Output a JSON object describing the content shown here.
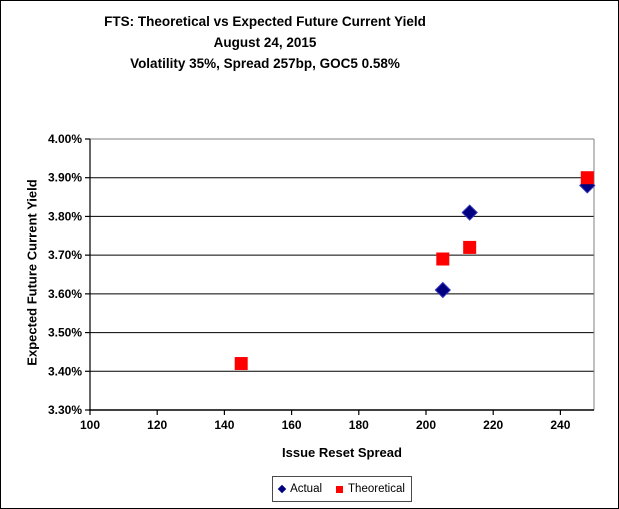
{
  "title": {
    "line1": "FTS: Theoretical vs Expected Future Current Yield",
    "line2": "August 24, 2015",
    "line3": "Volatility 35%, Spread 257bp, GOC5 0.58%"
  },
  "chart_data": {
    "type": "scatter",
    "xlabel": "Issue Reset Spread",
    "ylabel": "Expected Future Current Yield",
    "xlim": [
      100,
      250
    ],
    "ylim": [
      3.3,
      4.0
    ],
    "x_ticks": [
      100,
      120,
      140,
      160,
      180,
      200,
      220,
      240
    ],
    "y_ticks": [
      3.3,
      3.4,
      3.5,
      3.6,
      3.7,
      3.8,
      3.9,
      4.0
    ],
    "y_tick_suffix": "%",
    "grid": "horizontal",
    "legend_position": "bottom-center",
    "series": [
      {
        "name": "Actual",
        "marker": "diamond",
        "color": "#000080",
        "edge_color": "#3737bd",
        "points": [
          [
            205,
            3.61
          ],
          [
            213,
            3.81
          ],
          [
            248,
            3.88
          ]
        ]
      },
      {
        "name": "Theoretical",
        "marker": "square",
        "color": "#ff0000",
        "edge_color": "#e00000",
        "points": [
          [
            145,
            3.42
          ],
          [
            205,
            3.69
          ],
          [
            213,
            3.72
          ],
          [
            248,
            3.9
          ]
        ]
      }
    ]
  },
  "colors": {
    "grid_line": "#000000",
    "axis_line": "#000000",
    "plot_border": "#808080",
    "figure_border": "#000000",
    "text": "#000000"
  }
}
